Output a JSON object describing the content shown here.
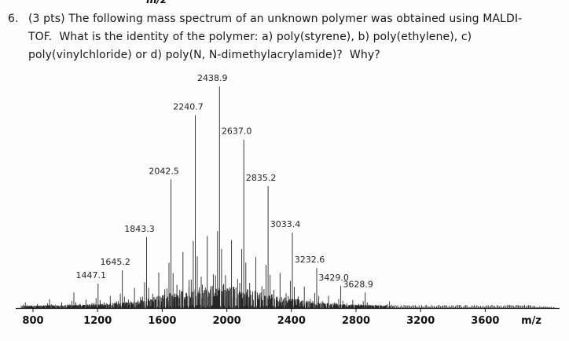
{
  "top_clipped_label": "m/z",
  "question": {
    "number": "6.",
    "lines": [
      "(3 pts) The following mass spectrum of an unknown polymer was obtained using MALDI-",
      "TOF.  What is the identity of the polymer: a) poly(styrene), b) poly(ethylene), c)",
      "poly(vinylchloride) or d) poly(N, N-dimethylacrylamide)?  Why?"
    ]
  },
  "chart_data": {
    "type": "line",
    "subtype": "mass-spectrum",
    "title": "",
    "xlabel": "m/z",
    "ylabel": "",
    "xlim": [
      800,
      3800
    ],
    "x_ticks": [
      800,
      1200,
      1600,
      2000,
      2400,
      2800,
      3200,
      3600
    ],
    "x_axis_label": "m/z",
    "grid": false,
    "peaks": [
      {
        "mz": 1447.1,
        "label": "1447.1",
        "intensity": 11
      },
      {
        "mz": 1645.2,
        "label": "1645.2",
        "intensity": 17
      },
      {
        "mz": 1843.3,
        "label": "1843.3",
        "intensity": 32
      },
      {
        "mz": 2042.5,
        "label": "2042.5",
        "intensity": 58
      },
      {
        "mz": 2240.7,
        "label": "2240.7",
        "intensity": 87
      },
      {
        "mz": 2438.9,
        "label": "2438.9",
        "intensity": 100
      },
      {
        "mz": 2637.0,
        "label": "2637.0",
        "intensity": 76
      },
      {
        "mz": 2835.2,
        "label": "2835.2",
        "intensity": 55
      },
      {
        "mz": 3033.4,
        "label": "3033.4",
        "intensity": 34
      },
      {
        "mz": 3232.6,
        "label": "3232.6",
        "intensity": 18
      },
      {
        "mz": 3429.0,
        "label": "3429.0",
        "intensity": 10
      },
      {
        "mz": 3628.9,
        "label": "3628.9",
        "intensity": 7
      }
    ],
    "unlabeled_minor_peaks": [
      {
        "mz": 852.8,
        "intensity": 2.5
      },
      {
        "mz": 1050.9,
        "intensity": 4
      },
      {
        "mz": 1249.0,
        "intensity": 7
      },
      {
        "mz": 3827.0,
        "intensity": 3
      }
    ]
  },
  "colors": {
    "ink": "#1c1c1c",
    "peak": "#262626",
    "background": "#fdfdfd"
  }
}
